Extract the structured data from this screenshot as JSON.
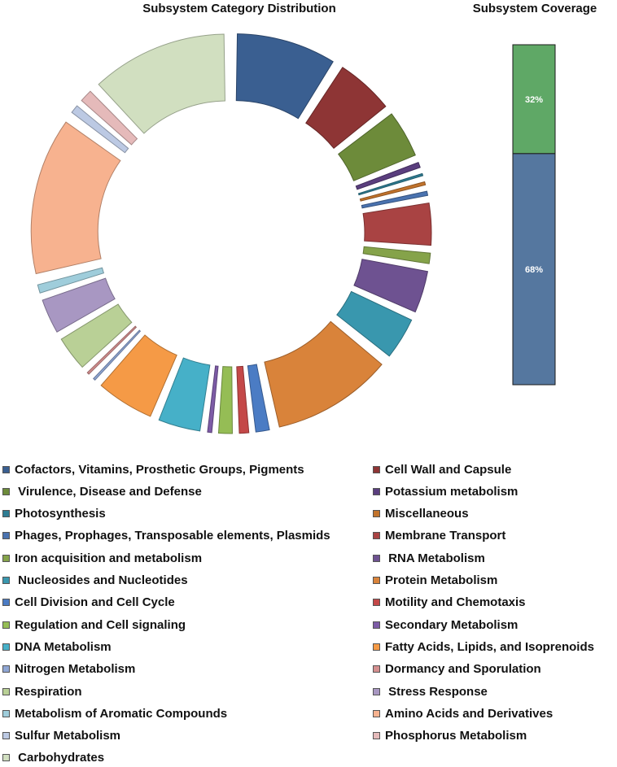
{
  "chart_data": [
    {
      "type": "donut",
      "title": "Subsystem Category Distribution",
      "slices": [
        {
          "name": "Cofactors, Vitamins, Prosthetic Groups, Pigments",
          "value": 9.5,
          "color": "#3A5F91"
        },
        {
          "name": "Cell Wall and Capsule",
          "value": 5.5,
          "color": "#8E3535"
        },
        {
          "name": "Virulence, Disease and Defense",
          "value": 4.5,
          "color": "#6D8B3A"
        },
        {
          "name": "Potassium metabolism",
          "value": 0.5,
          "color": "#5A3E7E"
        },
        {
          "name": "Photosynthesis",
          "value": 0.2,
          "color": "#2E7D93"
        },
        {
          "name": "Miscellaneous",
          "value": 0.3,
          "color": "#C2732C"
        },
        {
          "name": "Phages, Prophages, Transposable elements, Plasmids",
          "value": 0.4,
          "color": "#4A73B0"
        },
        {
          "name": "Membrane Transport",
          "value": 4.0,
          "color": "#A94343"
        },
        {
          "name": "Iron acquisition and metabolism",
          "value": 1.0,
          "color": "#85A34A"
        },
        {
          "name": "RNA Metabolism",
          "value": 4.0,
          "color": "#6E5291"
        },
        {
          "name": "Nucleosides and Nucleotides",
          "value": 4.0,
          "color": "#3997AE"
        },
        {
          "name": "Protein Metabolism",
          "value": 11.5,
          "color": "#D9833A"
        },
        {
          "name": "Cell Division and Cell Cycle",
          "value": 1.3,
          "color": "#4B7CC4"
        },
        {
          "name": "Motility and Chemotaxis",
          "value": 0.9,
          "color": "#C44848"
        },
        {
          "name": "Regulation and Cell signaling",
          "value": 1.3,
          "color": "#95BD55"
        },
        {
          "name": "Secondary Metabolism",
          "value": 0.4,
          "color": "#7D5BA6"
        },
        {
          "name": "DNA Metabolism",
          "value": 4.0,
          "color": "#46B0C8"
        },
        {
          "name": "Fatty Acids, Lipids, and Isoprenoids",
          "value": 5.5,
          "color": "#F59A46"
        },
        {
          "name": "Nitrogen Metabolism",
          "value": 0.2,
          "color": "#8FA6D4"
        },
        {
          "name": "Dormancy and Sporulation",
          "value": 0.2,
          "color": "#D48F8F"
        },
        {
          "name": "Respiration",
          "value": 3.3,
          "color": "#B9D096"
        },
        {
          "name": "Stress Response",
          "value": 3.3,
          "color": "#A897C2"
        },
        {
          "name": "Metabolism of Aromatic Compounds",
          "value": 0.8,
          "color": "#9FCDDB"
        },
        {
          "name": "Amino Acids and Derivatives",
          "value": 15.0,
          "color": "#F7B28F"
        },
        {
          "name": "Sulfur Metabolism",
          "value": 0.8,
          "color": "#BCC9E3"
        },
        {
          "name": "Phosphorus Metabolism",
          "value": 1.2,
          "color": "#E5BABA"
        },
        {
          "name": "Carbohydrates",
          "value": 13.0,
          "color": "#D1DFC0"
        }
      ]
    },
    {
      "type": "stacked-bar",
      "title": "Subsystem Coverage",
      "series": [
        {
          "value": 68,
          "label": "68%",
          "color": "#55779F"
        },
        {
          "value": 32,
          "label": "32%",
          "color": "#5FA866"
        }
      ]
    }
  ],
  "legend": {
    "left": [
      "Cofactors, Vitamins, Prosthetic Groups, Pigments",
      " Virulence, Disease and Defense",
      "Photosynthesis",
      "Phages, Prophages, Transposable elements, Plasmids",
      "Iron acquisition and metabolism",
      " Nucleosides and Nucleotides",
      "Cell Division and Cell Cycle",
      "Regulation and Cell signaling",
      "DNA Metabolism",
      "Nitrogen Metabolism",
      "Respiration",
      "Metabolism of Aromatic Compounds",
      "Sulfur Metabolism",
      " Carbohydrates"
    ],
    "right": [
      "Cell Wall and Capsule",
      "Potassium metabolism",
      "Miscellaneous",
      "Membrane Transport",
      " RNA Metabolism",
      "Protein Metabolism",
      "Motility and Chemotaxis",
      "Secondary Metabolism",
      "Fatty Acids, Lipids, and Isoprenoids",
      "Dormancy and Sporulation",
      " Stress Response",
      "Amino Acids and Derivatives",
      "Phosphorus Metabolism"
    ],
    "left_colors": [
      "#3A5F91",
      "#6D8B3A",
      "#2E7D93",
      "#4A73B0",
      "#85A34A",
      "#3997AE",
      "#4B7CC4",
      "#95BD55",
      "#46B0C8",
      "#8FA6D4",
      "#B9D096",
      "#9FCDDB",
      "#BCC9E3",
      "#D1DFC0"
    ],
    "right_colors": [
      "#8E3535",
      "#5A3E7E",
      "#C2732C",
      "#A94343",
      "#6E5291",
      "#D9833A",
      "#C44848",
      "#7D5BA6",
      "#F59A46",
      "#D48F8F",
      "#A897C2",
      "#F7B28F",
      "#E5BABA"
    ]
  }
}
